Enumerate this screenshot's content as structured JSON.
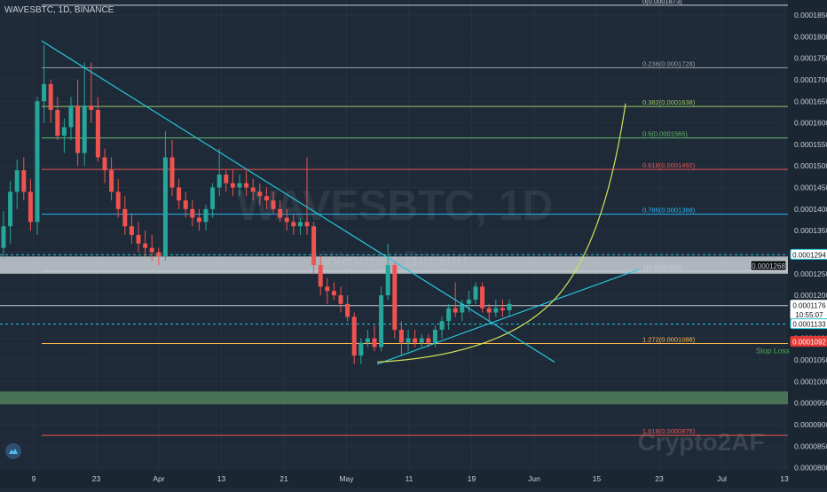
{
  "chart_data": {
    "type": "candlestick",
    "title": "WAVESBTC, 1D, BINANCE",
    "watermark": "WAVESBTC, 1D",
    "watermark_sub": "Waves / Bitcoin",
    "brand_watermark": "Crypto2AF",
    "ylim": [
      7.95e-05,
      0.0001885
    ],
    "y_ticks": [
      "0.0001850",
      "0.0001800",
      "0.0001750",
      "0.0001700",
      "0.0001650",
      "0.0001600",
      "0.0001550",
      "0.0001500",
      "0.0001450",
      "0.0001400",
      "0.0001350",
      "0.0001300",
      "0.0001250",
      "0.0001200",
      "0.0001150",
      "0.0001100",
      "0.0001050",
      "0.0001000",
      "0.0000950",
      "0.0000900",
      "0.0000850",
      "0.0000800"
    ],
    "x_ticks": [
      "9",
      "23",
      "Apr",
      "13",
      "21",
      "May",
      "11",
      "19",
      "Jun",
      "15",
      "23",
      "Jul",
      "13"
    ],
    "candles": [
      [
        0.000131,
        0.0001395,
        0.0001285,
        0.000136
      ],
      [
        0.000136,
        0.0001465,
        0.000132,
        0.000144
      ],
      [
        0.000144,
        0.0001515,
        0.00014,
        0.000149
      ],
      [
        0.000149,
        0.000152,
        0.000142,
        0.000144
      ],
      [
        0.000144,
        0.000147,
        0.000135,
        0.000137
      ],
      [
        0.000137,
        0.000166,
        0.000134,
        0.000165
      ],
      [
        0.000165,
        0.000178,
        0.00016,
        0.000169
      ],
      [
        0.000169,
        0.00017,
        0.00016,
        0.000163
      ],
      [
        0.000163,
        0.000166,
        0.000156,
        0.000157
      ],
      [
        0.000157,
        0.000161,
        0.000153,
        0.000159
      ],
      [
        0.000159,
        0.000166,
        0.000156,
        0.000164
      ],
      [
        0.000164,
        0.00017,
        0.00015,
        0.000153
      ],
      [
        0.000153,
        0.000174,
        0.00015,
        0.000164
      ],
      [
        0.000164,
        0.000174,
        0.00016,
        0.000163
      ],
      [
        0.000163,
        0.000166,
        0.000151,
        0.000152
      ],
      [
        0.000152,
        0.000154,
        0.000146,
        0.000149
      ],
      [
        0.000149,
        0.000152,
        0.000142,
        0.000144
      ],
      [
        0.000144,
        0.000147,
        0.000138,
        0.00014
      ],
      [
        0.00014,
        0.000143,
        0.000134,
        0.000136
      ],
      [
        0.000136,
        0.000139,
        0.000132,
        0.000134
      ],
      [
        0.000134,
        0.000137,
        0.00013,
        0.000132
      ],
      [
        0.000132,
        0.000135,
        0.000129,
        0.000131
      ],
      [
        0.000131,
        0.000134,
        0.000128,
        0.00013
      ],
      [
        0.00013,
        0.000131,
        0.000127,
        0.000129
      ],
      [
        0.000129,
        0.000158,
        0.000128,
        0.000152
      ],
      [
        0.000152,
        0.000156,
        0.000143,
        0.000145
      ],
      [
        0.000145,
        0.000147,
        0.00014,
        0.000142
      ],
      [
        0.000142,
        0.000144,
        0.000138,
        0.00014
      ],
      [
        0.00014,
        0.000142,
        0.000136,
        0.000138
      ],
      [
        0.000138,
        0.00014,
        0.000135,
        0.000137
      ],
      [
        0.000137,
        0.000141,
        0.000135,
        0.00014
      ],
      [
        0.00014,
        0.000146,
        0.000138,
        0.000145
      ],
      [
        0.000145,
        0.000154,
        0.000143,
        0.000148
      ],
      [
        0.000148,
        0.000149,
        0.000144,
        0.000146
      ],
      [
        0.000146,
        0.000149,
        0.000143,
        0.000145
      ],
      [
        0.000145,
        0.000148,
        0.000143,
        0.000146
      ],
      [
        0.000146,
        0.000149,
        0.000143,
        0.000145
      ],
      [
        0.000145,
        0.000147,
        0.000142,
        0.000144
      ],
      [
        0.000144,
        0.000146,
        0.000141,
        0.000143
      ],
      [
        0.000143,
        0.000145,
        0.00014,
        0.000142
      ],
      [
        0.000142,
        0.000144,
        0.000139,
        0.00014
      ],
      [
        0.00014,
        0.000142,
        0.000137,
        0.000138
      ],
      [
        0.000138,
        0.00014,
        0.000135,
        0.000137
      ],
      [
        0.000137,
        0.000139,
        0.000134,
        0.000136
      ],
      [
        0.000136,
        0.000138,
        0.000134,
        0.000137
      ],
      [
        0.000137,
        0.000152,
        0.000134,
        0.000136
      ],
      [
        0.000136,
        0.000137,
        0.000125,
        0.000127
      ],
      [
        0.000127,
        0.000129,
        0.00012,
        0.000122
      ],
      [
        0.000122,
        0.000124,
        0.000118,
        0.000121
      ],
      [
        0.000121,
        0.000123,
        0.000119,
        0.00012
      ],
      [
        0.00012,
        0.000122,
        0.000116,
        0.000118
      ],
      [
        0.000118,
        0.00012,
        0.000114,
        0.000115
      ],
      [
        0.000115,
        0.000116,
        0.000104,
        0.000106
      ],
      [
        0.000106,
        0.00011,
        0.000104,
        0.000109
      ],
      [
        0.000109,
        0.000112,
        0.000108,
        0.00011
      ],
      [
        0.00011,
        0.000113,
        0.000107,
        0.000108
      ],
      [
        0.000108,
        0.000122,
        0.000107,
        0.00012
      ],
      [
        0.00012,
        0.000132,
        0.000119,
        0.000127
      ],
      [
        0.000127,
        0.000128,
        0.00011,
        0.000112
      ],
      [
        0.000112,
        0.000114,
        0.000106,
        0.000109
      ],
      [
        0.000109,
        0.000112,
        0.000107,
        0.00011
      ],
      [
        0.00011,
        0.000112,
        0.000108,
        0.000109
      ],
      [
        0.000109,
        0.000111,
        0.000108,
        0.00011
      ],
      [
        0.00011,
        0.000111,
        0.000108,
        0.000109
      ],
      [
        0.000109,
        0.000113,
        0.000108,
        0.000112
      ],
      [
        0.000112,
        0.000115,
        0.00011,
        0.000114
      ],
      [
        0.000114,
        0.000118,
        0.000112,
        0.000117
      ],
      [
        0.000117,
        0.000123,
        0.000115,
        0.000116
      ],
      [
        0.000116,
        0.000119,
        0.000114,
        0.000118
      ],
      [
        0.000118,
        0.000121,
        0.000116,
        0.000119
      ],
      [
        0.000119,
        0.000123,
        0.000118,
        0.000122
      ],
      [
        0.000122,
        0.000123,
        0.000116,
        0.000117
      ],
      [
        0.000117,
        0.000118,
        0.000114,
        0.000116
      ],
      [
        0.000116,
        0.000119,
        0.000115,
        0.000117
      ],
      [
        0.000117,
        0.000119,
        0.000115,
        0.0001165
      ],
      [
        0.0001165,
        0.000119,
        0.000115,
        0.000118
      ]
    ],
    "fib_levels": [
      {
        "label": "0(0.0001873)",
        "value": 0.0001873,
        "color": "#c8ced6"
      },
      {
        "label": "0.236(0.0001728)",
        "value": 0.0001728,
        "color": "#9aa0a6"
      },
      {
        "label": "0.382(0.0001638)",
        "value": 0.0001638,
        "color": "#9ccc65"
      },
      {
        "label": "0.5(0.0001565)",
        "value": 0.0001565,
        "color": "#66bb6a"
      },
      {
        "label": "0.618(0.0001492)",
        "value": 0.0001492,
        "color": "#ef5350"
      },
      {
        "label": "0.786(0.0001388)",
        "value": 0.0001388,
        "color": "#29b6f6"
      },
      {
        "label": "1(0.0001256)",
        "value": 0.0001256,
        "color": "#c8ced6"
      },
      {
        "label": "1.272(0.0001088)",
        "value": 0.0001088,
        "color": "#ffb74d"
      },
      {
        "label": "1.618(0.0000875)",
        "value": 8.75e-05,
        "color": "#ef5350"
      }
    ],
    "price_labels": [
      {
        "text": "0.0001294",
        "value": 0.0001294,
        "bg": "#ffffff",
        "fg": "#131722",
        "border": "#26c6da"
      },
      {
        "text": "[0.0001268]",
        "value": 0.0001268,
        "bg": "#0b0f14",
        "fg": "#c8ced6",
        "border": "#c8ced6"
      },
      {
        "text": "0.0001176",
        "value": 0.0001176,
        "bg": "#ffffff",
        "fg": "#131722",
        "border": "#ffffff"
      },
      {
        "text": "10:55:07",
        "value": 0.0001155,
        "bg": "#ffffff",
        "fg": "#131722",
        "border": "#ffffff"
      },
      {
        "text": "0.0001133",
        "value": 0.0001133,
        "bg": "#ffffff",
        "fg": "#131722",
        "border": "#26c6da"
      },
      {
        "text": "0.0001092",
        "value": 0.0001092,
        "bg": "#e53935",
        "fg": "#ffffff",
        "border": "#e53935"
      }
    ],
    "annotations": [
      {
        "text": "Stop Loss",
        "color": "#4caf50"
      }
    ]
  }
}
